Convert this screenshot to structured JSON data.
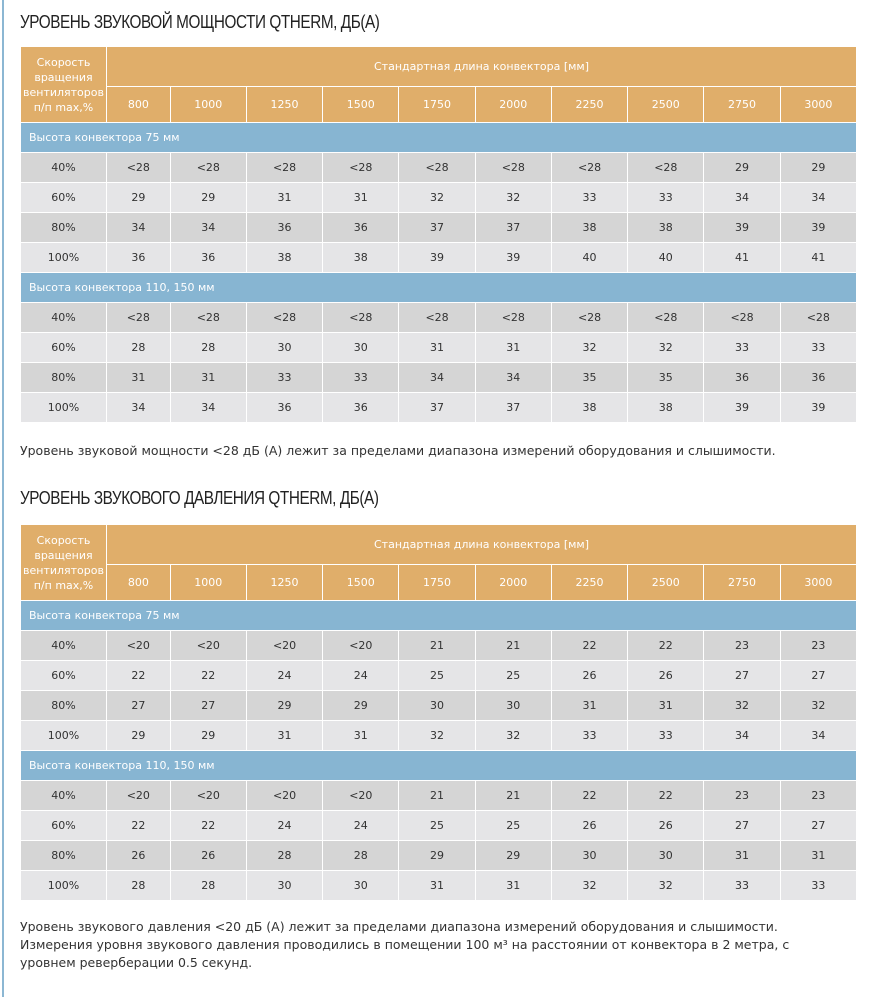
{
  "sections": [
    {
      "title": "УРОВЕНЬ ЗВУКОВОЙ МОЩНОСТИ QTHERM, ДБ(А)",
      "first_header": "Скорость вращения вентиляторов п/п max,%",
      "length_header": "Стандартная длина конвектора [мм]",
      "lengths": [
        "800",
        "1000",
        "1250",
        "1500",
        "1750",
        "2000",
        "2250",
        "2500",
        "2750",
        "3000"
      ],
      "groups": [
        {
          "label": "Высота конвектора 75 мм",
          "rows": [
            [
              "40%",
              "<28",
              "<28",
              "<28",
              "<28",
              "<28",
              "<28",
              "<28",
              "<28",
              "29",
              "29"
            ],
            [
              "60%",
              "29",
              "29",
              "31",
              "31",
              "32",
              "32",
              "33",
              "33",
              "34",
              "34"
            ],
            [
              "80%",
              "34",
              "34",
              "36",
              "36",
              "37",
              "37",
              "38",
              "38",
              "39",
              "39"
            ],
            [
              "100%",
              "36",
              "36",
              "38",
              "38",
              "39",
              "39",
              "40",
              "40",
              "41",
              "41"
            ]
          ]
        },
        {
          "label": "Высота конвектора 110, 150 мм",
          "rows": [
            [
              "40%",
              "<28",
              "<28",
              "<28",
              "<28",
              "<28",
              "<28",
              "<28",
              "<28",
              "<28",
              "<28"
            ],
            [
              "60%",
              "28",
              "28",
              "30",
              "30",
              "31",
              "31",
              "32",
              "32",
              "33",
              "33"
            ],
            [
              "80%",
              "31",
              "31",
              "33",
              "33",
              "34",
              "34",
              "35",
              "35",
              "36",
              "36"
            ],
            [
              "100%",
              "34",
              "34",
              "36",
              "36",
              "37",
              "37",
              "38",
              "38",
              "39",
              "39"
            ]
          ]
        }
      ],
      "notes": [
        "Уровень звуковой мощности <28 дБ (А) лежит за пределами диапазона измерений оборудования и слышимости."
      ]
    },
    {
      "title": "УРОВЕНЬ ЗВУКОВОГО ДАВЛЕНИЯ QTHERM, ДБ(А)",
      "first_header": "Скорость вращения вентиляторов п/п max,%",
      "length_header": "Стандартная длина конвектора [мм]",
      "lengths": [
        "800",
        "1000",
        "1250",
        "1500",
        "1750",
        "2000",
        "2250",
        "2500",
        "2750",
        "3000"
      ],
      "groups": [
        {
          "label": "Высота конвектора 75 мм",
          "rows": [
            [
              "40%",
              "<20",
              "<20",
              "<20",
              "<20",
              "21",
              "21",
              "22",
              "22",
              "23",
              "23"
            ],
            [
              "60%",
              "22",
              "22",
              "24",
              "24",
              "25",
              "25",
              "26",
              "26",
              "27",
              "27"
            ],
            [
              "80%",
              "27",
              "27",
              "29",
              "29",
              "30",
              "30",
              "31",
              "31",
              "32",
              "32"
            ],
            [
              "100%",
              "29",
              "29",
              "31",
              "31",
              "32",
              "32",
              "33",
              "33",
              "34",
              "34"
            ]
          ]
        },
        {
          "label": "Высота конвектора 110, 150 мм",
          "rows": [
            [
              "40%",
              "<20",
              "<20",
              "<20",
              "<20",
              "21",
              "21",
              "22",
              "22",
              "23",
              "23"
            ],
            [
              "60%",
              "22",
              "22",
              "24",
              "24",
              "25",
              "25",
              "26",
              "26",
              "27",
              "27"
            ],
            [
              "80%",
              "26",
              "26",
              "28",
              "28",
              "29",
              "29",
              "30",
              "30",
              "31",
              "31"
            ],
            [
              "100%",
              "28",
              "28",
              "30",
              "30",
              "31",
              "31",
              "32",
              "32",
              "33",
              "33"
            ]
          ]
        }
      ],
      "notes": [
        "Уровень звукового давления <20 дБ (А) лежит за пределами диапазона измерений оборудования и слышимости.",
        "Измерения уровня звукового давления проводились в помещении 100 м³ на расстоянии от конвектора в 2 метра, с уровнем реверберации 0.5 секунд."
      ]
    }
  ]
}
